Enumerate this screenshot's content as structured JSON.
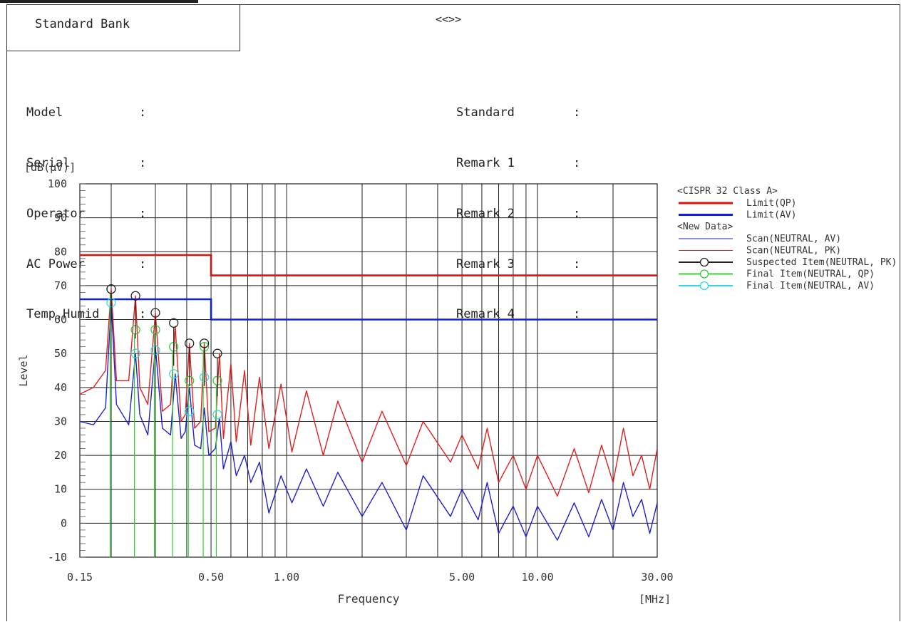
{
  "header": {
    "title": "Standard Bank",
    "center_title": "<<>>"
  },
  "info_left": [
    {
      "label": "Model",
      "sep": ":",
      "value": ""
    },
    {
      "label": "Serial",
      "sep": ":",
      "value": ""
    },
    {
      "label": "Operator",
      "sep": ":",
      "value": ""
    },
    {
      "label": "AC Power",
      "sep": ":",
      "value": ""
    },
    {
      "label": "Temp,Humid",
      "sep": ":",
      "value": ""
    }
  ],
  "info_right": [
    {
      "label": "Standard",
      "sep": ":",
      "value": ""
    },
    {
      "label": "Remark 1",
      "sep": ":",
      "value": ""
    },
    {
      "label": "Remark 2",
      "sep": ":",
      "value": ""
    },
    {
      "label": "Remark 3",
      "sep": ":",
      "value": ""
    },
    {
      "label": "Remark 4",
      "sep": ":",
      "value": ""
    }
  ],
  "chart_data": {
    "type": "line",
    "title": "",
    "ylabel": "Level",
    "yunit": "[dB(µV)]",
    "xlabel": "Frequency",
    "xunit": "[MHz]",
    "xscale": "log",
    "xlim": [
      0.15,
      30.0
    ],
    "ylim": [
      -10,
      100
    ],
    "y_ticks": [
      100,
      90,
      80,
      70,
      60,
      50,
      40,
      30,
      20,
      10,
      0,
      -10
    ],
    "x_tick_labels": [
      {
        "x": 0.15,
        "label": "0.15"
      },
      {
        "x": 0.5,
        "label": "0.50"
      },
      {
        "x": 1.0,
        "label": "1.00"
      },
      {
        "x": 5.0,
        "label": "5.00"
      },
      {
        "x": 10.0,
        "label": "10.00"
      },
      {
        "x": 30.0,
        "label": "30.00"
      }
    ],
    "grid": true,
    "legend_position": "right",
    "legend": [
      {
        "text": "<CISPR 32 Class A>",
        "kind": "header"
      },
      {
        "text": "Limit(QP)",
        "kind": "line",
        "color": "#e01010",
        "width": 3
      },
      {
        "text": "Limit(AV)",
        "kind": "line",
        "color": "#1020e0",
        "width": 3
      },
      {
        "text": "<New Data>",
        "kind": "header"
      },
      {
        "text": "Scan(NEUTRAL, AV)",
        "kind": "line",
        "color": "#2020d0",
        "width": 1
      },
      {
        "text": "Scan(NEUTRAL, PK)",
        "kind": "line",
        "color": "#e02020",
        "width": 1
      },
      {
        "text": "Suspected Item(NEUTRAL, PK)",
        "kind": "marker",
        "color": "#222222"
      },
      {
        "text": "Final Item(NEUTRAL, QP)",
        "kind": "marker",
        "color": "#30d030"
      },
      {
        "text": "Final Item(NEUTRAL, AV)",
        "kind": "marker",
        "color": "#30d8e8"
      }
    ],
    "series": [
      {
        "name": "Limit(QP)",
        "color": "#e01010",
        "points": [
          [
            0.15,
            79
          ],
          [
            0.5,
            79
          ],
          [
            0.5,
            73
          ],
          [
            30.0,
            73
          ]
        ]
      },
      {
        "name": "Limit(AV)",
        "color": "#1020e0",
        "points": [
          [
            0.15,
            66
          ],
          [
            0.5,
            66
          ],
          [
            0.5,
            60
          ],
          [
            30.0,
            60
          ]
        ]
      },
      {
        "name": "Scan(NEUTRAL, PK)",
        "color": "#e02020",
        "points": [
          [
            0.15,
            38
          ],
          [
            0.17,
            40
          ],
          [
            0.19,
            45
          ],
          [
            0.2,
            69
          ],
          [
            0.21,
            42
          ],
          [
            0.235,
            42
          ],
          [
            0.25,
            67
          ],
          [
            0.26,
            40
          ],
          [
            0.28,
            35
          ],
          [
            0.3,
            62
          ],
          [
            0.32,
            33
          ],
          [
            0.345,
            35
          ],
          [
            0.36,
            58
          ],
          [
            0.38,
            30
          ],
          [
            0.395,
            32
          ],
          [
            0.41,
            53
          ],
          [
            0.43,
            28
          ],
          [
            0.455,
            30
          ],
          [
            0.47,
            53
          ],
          [
            0.49,
            27
          ],
          [
            0.52,
            28
          ],
          [
            0.54,
            50
          ],
          [
            0.56,
            25
          ],
          [
            0.6,
            47
          ],
          [
            0.63,
            24
          ],
          [
            0.68,
            45
          ],
          [
            0.72,
            23
          ],
          [
            0.78,
            43
          ],
          [
            0.85,
            22
          ],
          [
            0.95,
            41
          ],
          [
            1.05,
            21
          ],
          [
            1.2,
            39
          ],
          [
            1.4,
            20
          ],
          [
            1.6,
            36
          ],
          [
            2.0,
            18
          ],
          [
            2.4,
            33
          ],
          [
            3.0,
            17
          ],
          [
            3.5,
            30
          ],
          [
            4.5,
            18
          ],
          [
            5.0,
            26
          ],
          [
            5.8,
            16
          ],
          [
            6.3,
            28
          ],
          [
            7.0,
            12
          ],
          [
            8.0,
            20
          ],
          [
            9.0,
            10
          ],
          [
            10.0,
            20
          ],
          [
            12.0,
            8
          ],
          [
            14.0,
            22
          ],
          [
            16.0,
            9
          ],
          [
            18.0,
            23
          ],
          [
            20.0,
            12
          ],
          [
            22.0,
            28
          ],
          [
            24.0,
            14
          ],
          [
            26.0,
            20
          ],
          [
            28.0,
            10
          ],
          [
            30.0,
            22
          ]
        ]
      },
      {
        "name": "Scan(NEUTRAL, AV)",
        "color": "#2020d0",
        "points": [
          [
            0.15,
            30
          ],
          [
            0.17,
            29
          ],
          [
            0.19,
            34
          ],
          [
            0.2,
            65
          ],
          [
            0.21,
            35
          ],
          [
            0.235,
            29
          ],
          [
            0.25,
            50
          ],
          [
            0.26,
            32
          ],
          [
            0.28,
            26
          ],
          [
            0.3,
            52
          ],
          [
            0.32,
            28
          ],
          [
            0.345,
            26
          ],
          [
            0.36,
            44
          ],
          [
            0.38,
            25
          ],
          [
            0.395,
            27
          ],
          [
            0.41,
            40
          ],
          [
            0.43,
            23
          ],
          [
            0.455,
            22
          ],
          [
            0.47,
            34
          ],
          [
            0.49,
            20
          ],
          [
            0.52,
            22
          ],
          [
            0.54,
            31
          ],
          [
            0.56,
            16
          ],
          [
            0.6,
            24
          ],
          [
            0.63,
            14
          ],
          [
            0.68,
            20
          ],
          [
            0.72,
            12
          ],
          [
            0.78,
            18
          ],
          [
            0.85,
            3
          ],
          [
            0.95,
            14
          ],
          [
            1.05,
            6
          ],
          [
            1.2,
            16
          ],
          [
            1.4,
            5
          ],
          [
            1.6,
            15
          ],
          [
            2.0,
            2
          ],
          [
            2.4,
            12
          ],
          [
            3.0,
            -2
          ],
          [
            3.5,
            14
          ],
          [
            4.5,
            2
          ],
          [
            5.0,
            10
          ],
          [
            5.8,
            1
          ],
          [
            6.3,
            12
          ],
          [
            7.0,
            -3
          ],
          [
            8.0,
            5
          ],
          [
            9.0,
            -4
          ],
          [
            10.0,
            5
          ],
          [
            12.0,
            -5
          ],
          [
            14.0,
            6
          ],
          [
            16.0,
            -4
          ],
          [
            18.0,
            7
          ],
          [
            20.0,
            -2
          ],
          [
            22.0,
            12
          ],
          [
            24.0,
            2
          ],
          [
            26.0,
            7
          ],
          [
            28.0,
            -3
          ],
          [
            30.0,
            6
          ]
        ]
      }
    ],
    "suspected_items": [
      {
        "x": 0.2,
        "y": 69
      },
      {
        "x": 0.25,
        "y": 67
      },
      {
        "x": 0.3,
        "y": 62
      },
      {
        "x": 0.355,
        "y": 59
      },
      {
        "x": 0.41,
        "y": 53
      },
      {
        "x": 0.47,
        "y": 53
      },
      {
        "x": 0.53,
        "y": 50
      }
    ],
    "final_qp": [
      {
        "x": 0.2,
        "y": 69
      },
      {
        "x": 0.25,
        "y": 57
      },
      {
        "x": 0.3,
        "y": 57
      },
      {
        "x": 0.355,
        "y": 52
      },
      {
        "x": 0.41,
        "y": 42
      },
      {
        "x": 0.47,
        "y": 52
      },
      {
        "x": 0.53,
        "y": 42
      }
    ],
    "final_av": [
      {
        "x": 0.2,
        "y": 65
      },
      {
        "x": 0.25,
        "y": 50
      },
      {
        "x": 0.3,
        "y": 51
      },
      {
        "x": 0.355,
        "y": 44
      },
      {
        "x": 0.41,
        "y": 33
      },
      {
        "x": 0.47,
        "y": 43
      },
      {
        "x": 0.53,
        "y": 32
      }
    ]
  }
}
